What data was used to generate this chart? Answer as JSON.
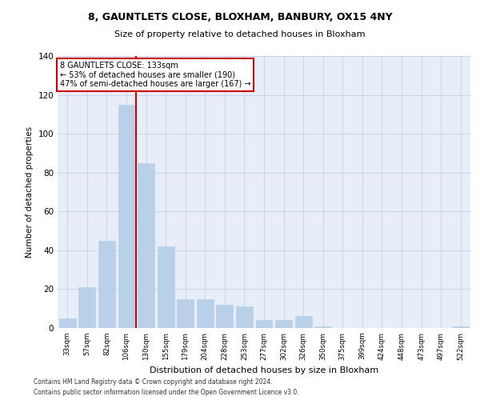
{
  "title1": "8, GAUNTLETS CLOSE, BLOXHAM, BANBURY, OX15 4NY",
  "title2": "Size of property relative to detached houses in Bloxham",
  "xlabel": "Distribution of detached houses by size in Bloxham",
  "ylabel": "Number of detached properties",
  "categories": [
    "33sqm",
    "57sqm",
    "82sqm",
    "106sqm",
    "130sqm",
    "155sqm",
    "179sqm",
    "204sqm",
    "228sqm",
    "253sqm",
    "277sqm",
    "302sqm",
    "326sqm",
    "350sqm",
    "375sqm",
    "399sqm",
    "424sqm",
    "448sqm",
    "473sqm",
    "497sqm",
    "522sqm"
  ],
  "values": [
    5,
    21,
    45,
    115,
    85,
    42,
    15,
    15,
    12,
    11,
    4,
    4,
    6,
    1,
    0,
    0,
    0,
    0,
    0,
    0,
    1
  ],
  "bar_color": "#b8d0e8",
  "bar_edge_color": "#b8d0e8",
  "grid_color": "#c8d4e8",
  "background_color": "#e8eef8",
  "annotation_text_line1": "8 GAUNTLETS CLOSE: 133sqm",
  "annotation_text_line2": "← 53% of detached houses are smaller (190)",
  "annotation_text_line3": "47% of semi-detached houses are larger (167) →",
  "red_line_color": "#cc0000",
  "annotation_box_color": "#ffffff",
  "annotation_box_edge": "#cc0000",
  "footer1": "Contains HM Land Registry data © Crown copyright and database right 2024.",
  "footer2": "Contains public sector information licensed under the Open Government Licence v3.0.",
  "ylim": [
    0,
    140
  ],
  "yticks": [
    0,
    20,
    40,
    60,
    80,
    100,
    120,
    140
  ]
}
